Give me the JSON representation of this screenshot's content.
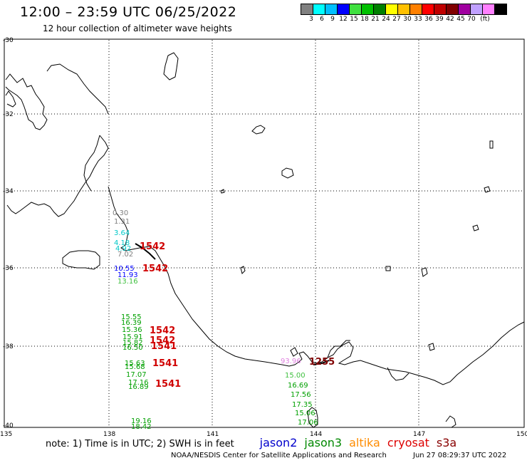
{
  "header": {
    "title": "12:00 – 23:59 UTC 06/25/2022",
    "subtitle": "12 hour collection of altimeter wave heights"
  },
  "scale": {
    "unit": "(ft)",
    "colors": [
      "#808080",
      "#00ffff",
      "#00bfff",
      "#0000ff",
      "#40e040",
      "#00c000",
      "#008000",
      "#ffff00",
      "#ffc000",
      "#ff8000",
      "#ff0000",
      "#c00000",
      "#800000",
      "#a000a0",
      "#c0a0ff",
      "#ff80ff",
      "#000000"
    ],
    "labels": [
      "3",
      "6",
      "9",
      "12",
      "15",
      "18",
      "21",
      "24",
      "27",
      "30",
      "33",
      "36",
      "39",
      "42",
      "45",
      "70"
    ]
  },
  "axes": {
    "lat_labels": [
      "-30",
      "-32",
      "-34",
      "-36",
      "-38",
      "-40"
    ],
    "lon_labels": [
      "135",
      "138",
      "141",
      "144",
      "147",
      "150"
    ]
  },
  "wave_heights": [
    {
      "text": "0.30",
      "color": "#808080"
    },
    {
      "text": "1.31",
      "color": "#808080"
    },
    {
      "text": "3.64",
      "color": "#00c8c8"
    },
    {
      "text": "4.18",
      "color": "#00c8c8"
    },
    {
      "text": "4.92",
      "color": "#00c8c8"
    },
    {
      "text": "7.02",
      "color": "#808080"
    },
    {
      "text": "10.55",
      "color": "#0000ff"
    },
    {
      "text": "11.93",
      "color": "#0000ff"
    },
    {
      "text": "13.16",
      "color": "#40c040"
    },
    {
      "text": "15.55",
      "color": "#00a000"
    },
    {
      "text": "16.39",
      "color": "#00a000"
    },
    {
      "text": "15.36",
      "color": "#00a000"
    },
    {
      "text": "15.91",
      "color": "#00a000"
    },
    {
      "text": "15.82",
      "color": "#00a000"
    },
    {
      "text": "16.50",
      "color": "#00a000"
    },
    {
      "text": "15.63",
      "color": "#00a000"
    },
    {
      "text": "15.68",
      "color": "#00a000"
    },
    {
      "text": "17.07",
      "color": "#00a000"
    },
    {
      "text": "17.16",
      "color": "#00a000"
    },
    {
      "text": "16.89",
      "color": "#00a000"
    },
    {
      "text": "19.16",
      "color": "#00a000"
    },
    {
      "text": "18.42",
      "color": "#00a000"
    },
    {
      "text": "93.96",
      "color": "#e080e0"
    },
    {
      "text": "15.00",
      "color": "#40c040"
    },
    {
      "text": "16.69",
      "color": "#00a000"
    },
    {
      "text": "17.56",
      "color": "#00a000"
    },
    {
      "text": "17.35",
      "color": "#00a000"
    },
    {
      "text": "15.06",
      "color": "#00a000"
    },
    {
      "text": "17.06",
      "color": "#00a000"
    }
  ],
  "times": [
    {
      "text": "1542",
      "color": "#d00000"
    },
    {
      "text": "1542",
      "color": "#d00000"
    },
    {
      "text": "1542",
      "color": "#d00000"
    },
    {
      "text": "1542",
      "color": "#d00000"
    },
    {
      "text": "1541",
      "color": "#d00000"
    },
    {
      "text": "1541",
      "color": "#d00000"
    },
    {
      "text": "1541",
      "color": "#d00000"
    },
    {
      "text": "1255",
      "color": "#800000"
    }
  ],
  "footer": {
    "note": "note: 1) Time is in UTC; 2) SWH is in feet",
    "satellites": [
      {
        "name": "jason2",
        "color": "#0000cc"
      },
      {
        "name": "jason3",
        "color": "#008800"
      },
      {
        "name": "altika",
        "color": "#ff8c00"
      },
      {
        "name": "cryosat",
        "color": "#dd0000"
      },
      {
        "name": "s3a",
        "color": "#880000"
      }
    ],
    "credit": "NOAA/NESDIS Center for Satellite Applications and Research",
    "timestamp": "Jun 27 08:29:37 UTC 2022"
  }
}
